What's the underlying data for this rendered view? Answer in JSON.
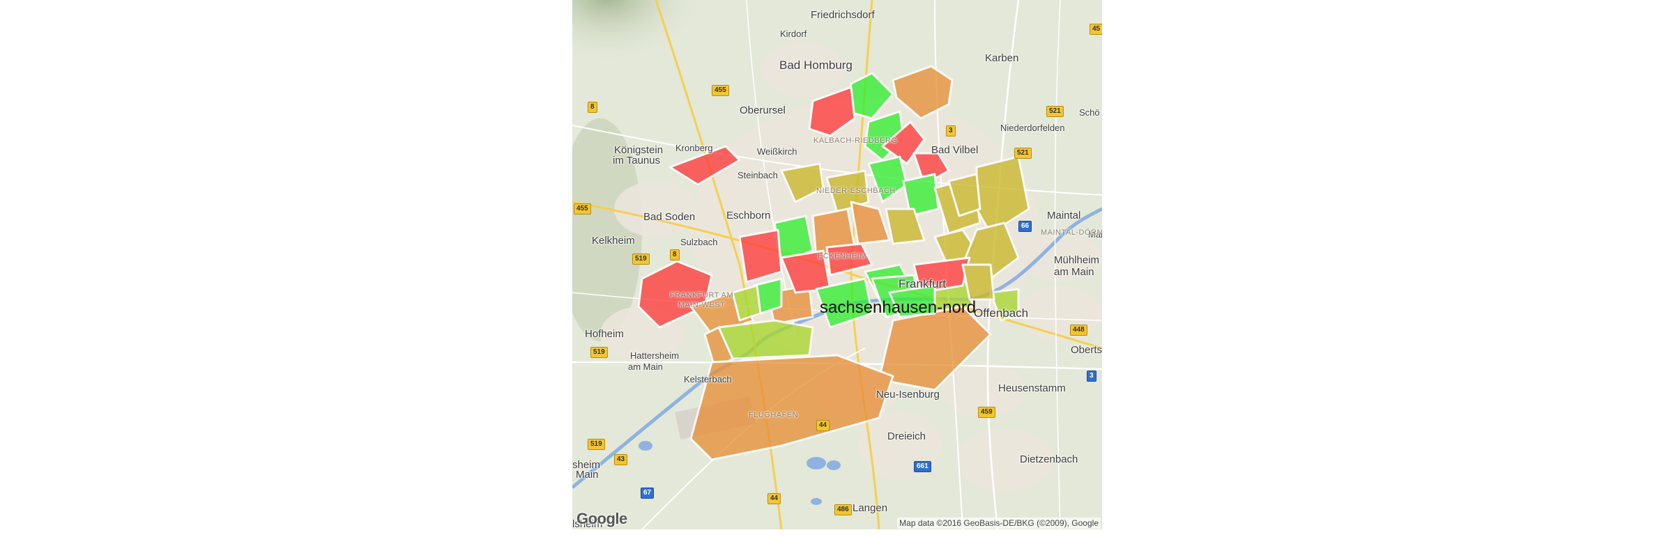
{
  "map": {
    "places": [
      {
        "name": "Friedrichsdorf",
        "size": "mid"
      },
      {
        "name": "Kirdorf",
        "size": "small"
      },
      {
        "name": "Bad Homburg",
        "size": "big"
      },
      {
        "name": "Karben",
        "size": "mid"
      },
      {
        "name": "Oberursel",
        "size": "mid"
      },
      {
        "name": "Niederdorfelden",
        "size": "small"
      },
      {
        "name": "Königstein",
        "size": "mid"
      },
      {
        "name": "im Taunus",
        "size": "mid"
      },
      {
        "name": "Kronberg",
        "size": "small"
      },
      {
        "name": "Weißkirch",
        "size": "small"
      },
      {
        "name": "Bad Vilbel",
        "size": "mid"
      },
      {
        "name": "Steinbach",
        "size": "small"
      },
      {
        "name": "Bad Soden",
        "size": "mid"
      },
      {
        "name": "Eschborn",
        "size": "mid"
      },
      {
        "name": "Maintal",
        "size": "mid"
      },
      {
        "name": "Kelkheim",
        "size": "mid"
      },
      {
        "name": "Sulzbach",
        "size": "small"
      },
      {
        "name": "Mühlheim",
        "size": "mid"
      },
      {
        "name": "am Main",
        "size": "mid"
      },
      {
        "name": "Offenbach",
        "size": "big"
      },
      {
        "name": "Hofheim",
        "size": "mid"
      },
      {
        "name": "Oberts",
        "size": "mid"
      },
      {
        "name": "Hattersheim",
        "size": "small"
      },
      {
        "name": "am Main",
        "size": "small"
      },
      {
        "name": "Kelsterbach",
        "size": "small"
      },
      {
        "name": "Neu-Isenburg",
        "size": "mid"
      },
      {
        "name": "Heusenstamm",
        "size": "mid"
      },
      {
        "name": "Dreieich",
        "size": "mid"
      },
      {
        "name": "Dietzenbach",
        "size": "mid"
      },
      {
        "name": "sheim",
        "size": "mid"
      },
      {
        "name": "Main",
        "size": "mid"
      },
      {
        "name": "Langen",
        "size": "mid"
      },
      {
        "name": "lsheim",
        "size": "mid"
      },
      {
        "name": "Schö",
        "size": "small"
      },
      {
        "name": "Main",
        "size": "small"
      },
      {
        "name": "Frankfurt",
        "size": "big"
      }
    ],
    "faint_labels": [
      {
        "text": "KALBACH-RIEDBERG"
      },
      {
        "text": "NIEDER-ESCHBACH"
      },
      {
        "text": "ECKENHEIM"
      },
      {
        "text": "FRANKFURT AM"
      },
      {
        "text": "MAIN-WEST"
      },
      {
        "text": "FLUGHAFEN"
      },
      {
        "text": "MAINTAL-DÖRNIGH"
      }
    ],
    "road_shields": [
      {
        "num": "45",
        "type": "yellow"
      },
      {
        "num": "455",
        "type": "yellow"
      },
      {
        "num": "8",
        "type": "yellow"
      },
      {
        "num": "521",
        "type": "yellow"
      },
      {
        "num": "3",
        "type": "yellow"
      },
      {
        "num": "521",
        "type": "yellow"
      },
      {
        "num": "455",
        "type": "yellow"
      },
      {
        "num": "66",
        "type": "blue"
      },
      {
        "num": "519",
        "type": "yellow"
      },
      {
        "num": "8",
        "type": "yellow"
      },
      {
        "num": "448",
        "type": "yellow"
      },
      {
        "num": "519",
        "type": "yellow"
      },
      {
        "num": "3",
        "type": "blue"
      },
      {
        "num": "459",
        "type": "yellow"
      },
      {
        "num": "44",
        "type": "yellow"
      },
      {
        "num": "519",
        "type": "yellow"
      },
      {
        "num": "43",
        "type": "yellow"
      },
      {
        "num": "661",
        "type": "blue"
      },
      {
        "num": "67",
        "type": "blue"
      },
      {
        "num": "44",
        "type": "yellow"
      },
      {
        "num": "486",
        "type": "yellow"
      }
    ],
    "district_label": "sachsenhausen-nord",
    "logo": "Google",
    "attribution": "Map data ©2016 GeoBasis-DE/BKG (©2009), Google",
    "colors": {
      "red": "#ff3b3b",
      "green": "#33ee33",
      "olive": "#c9b72a",
      "orange": "#e8903a",
      "lime": "#a9d62f",
      "terrain": "#e3e8d8",
      "urban": "#ebe7df",
      "river": "#8fb3e0",
      "road_major": "#f6cf4f"
    },
    "district_categories": [
      "red",
      "green",
      "red",
      "orange",
      "green",
      "red",
      "red",
      "olive",
      "olive",
      "green",
      "green",
      "olive",
      "orange",
      "olive",
      "orange",
      "green",
      "red",
      "red",
      "olive",
      "green",
      "red",
      "orange",
      "olive",
      "orange",
      "red",
      "green",
      "green",
      "olive",
      "lime",
      "lime",
      "orange",
      "red",
      "green",
      "lime",
      "olive",
      "orange",
      "olive",
      "orange",
      "green",
      "lime"
    ]
  }
}
